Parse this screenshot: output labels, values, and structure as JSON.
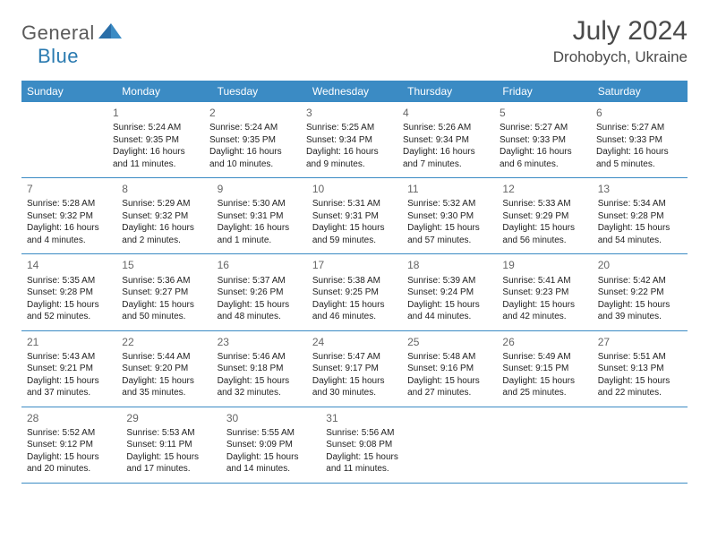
{
  "logo": {
    "text1": "General",
    "text2": "Blue"
  },
  "title": "July 2024",
  "location": "Drohobych, Ukraine",
  "header_bg_color": "#3b8bc4",
  "header_text_color": "#ffffff",
  "border_color": "#3b8bc4",
  "day_names": [
    "Sunday",
    "Monday",
    "Tuesday",
    "Wednesday",
    "Thursday",
    "Friday",
    "Saturday"
  ],
  "start_offset": 1,
  "days": [
    {
      "n": 1,
      "sunrise": "5:24 AM",
      "sunset": "9:35 PM",
      "daylight": "16 hours and 11 minutes."
    },
    {
      "n": 2,
      "sunrise": "5:24 AM",
      "sunset": "9:35 PM",
      "daylight": "16 hours and 10 minutes."
    },
    {
      "n": 3,
      "sunrise": "5:25 AM",
      "sunset": "9:34 PM",
      "daylight": "16 hours and 9 minutes."
    },
    {
      "n": 4,
      "sunrise": "5:26 AM",
      "sunset": "9:34 PM",
      "daylight": "16 hours and 7 minutes."
    },
    {
      "n": 5,
      "sunrise": "5:27 AM",
      "sunset": "9:33 PM",
      "daylight": "16 hours and 6 minutes."
    },
    {
      "n": 6,
      "sunrise": "5:27 AM",
      "sunset": "9:33 PM",
      "daylight": "16 hours and 5 minutes."
    },
    {
      "n": 7,
      "sunrise": "5:28 AM",
      "sunset": "9:32 PM",
      "daylight": "16 hours and 4 minutes."
    },
    {
      "n": 8,
      "sunrise": "5:29 AM",
      "sunset": "9:32 PM",
      "daylight": "16 hours and 2 minutes."
    },
    {
      "n": 9,
      "sunrise": "5:30 AM",
      "sunset": "9:31 PM",
      "daylight": "16 hours and 1 minute."
    },
    {
      "n": 10,
      "sunrise": "5:31 AM",
      "sunset": "9:31 PM",
      "daylight": "15 hours and 59 minutes."
    },
    {
      "n": 11,
      "sunrise": "5:32 AM",
      "sunset": "9:30 PM",
      "daylight": "15 hours and 57 minutes."
    },
    {
      "n": 12,
      "sunrise": "5:33 AM",
      "sunset": "9:29 PM",
      "daylight": "15 hours and 56 minutes."
    },
    {
      "n": 13,
      "sunrise": "5:34 AM",
      "sunset": "9:28 PM",
      "daylight": "15 hours and 54 minutes."
    },
    {
      "n": 14,
      "sunrise": "5:35 AM",
      "sunset": "9:28 PM",
      "daylight": "15 hours and 52 minutes."
    },
    {
      "n": 15,
      "sunrise": "5:36 AM",
      "sunset": "9:27 PM",
      "daylight": "15 hours and 50 minutes."
    },
    {
      "n": 16,
      "sunrise": "5:37 AM",
      "sunset": "9:26 PM",
      "daylight": "15 hours and 48 minutes."
    },
    {
      "n": 17,
      "sunrise": "5:38 AM",
      "sunset": "9:25 PM",
      "daylight": "15 hours and 46 minutes."
    },
    {
      "n": 18,
      "sunrise": "5:39 AM",
      "sunset": "9:24 PM",
      "daylight": "15 hours and 44 minutes."
    },
    {
      "n": 19,
      "sunrise": "5:41 AM",
      "sunset": "9:23 PM",
      "daylight": "15 hours and 42 minutes."
    },
    {
      "n": 20,
      "sunrise": "5:42 AM",
      "sunset": "9:22 PM",
      "daylight": "15 hours and 39 minutes."
    },
    {
      "n": 21,
      "sunrise": "5:43 AM",
      "sunset": "9:21 PM",
      "daylight": "15 hours and 37 minutes."
    },
    {
      "n": 22,
      "sunrise": "5:44 AM",
      "sunset": "9:20 PM",
      "daylight": "15 hours and 35 minutes."
    },
    {
      "n": 23,
      "sunrise": "5:46 AM",
      "sunset": "9:18 PM",
      "daylight": "15 hours and 32 minutes."
    },
    {
      "n": 24,
      "sunrise": "5:47 AM",
      "sunset": "9:17 PM",
      "daylight": "15 hours and 30 minutes."
    },
    {
      "n": 25,
      "sunrise": "5:48 AM",
      "sunset": "9:16 PM",
      "daylight": "15 hours and 27 minutes."
    },
    {
      "n": 26,
      "sunrise": "5:49 AM",
      "sunset": "9:15 PM",
      "daylight": "15 hours and 25 minutes."
    },
    {
      "n": 27,
      "sunrise": "5:51 AM",
      "sunset": "9:13 PM",
      "daylight": "15 hours and 22 minutes."
    },
    {
      "n": 28,
      "sunrise": "5:52 AM",
      "sunset": "9:12 PM",
      "daylight": "15 hours and 20 minutes."
    },
    {
      "n": 29,
      "sunrise": "5:53 AM",
      "sunset": "9:11 PM",
      "daylight": "15 hours and 17 minutes."
    },
    {
      "n": 30,
      "sunrise": "5:55 AM",
      "sunset": "9:09 PM",
      "daylight": "15 hours and 14 minutes."
    },
    {
      "n": 31,
      "sunrise": "5:56 AM",
      "sunset": "9:08 PM",
      "daylight": "15 hours and 11 minutes."
    }
  ],
  "labels": {
    "sunrise": "Sunrise:",
    "sunset": "Sunset:",
    "daylight": "Daylight:"
  }
}
